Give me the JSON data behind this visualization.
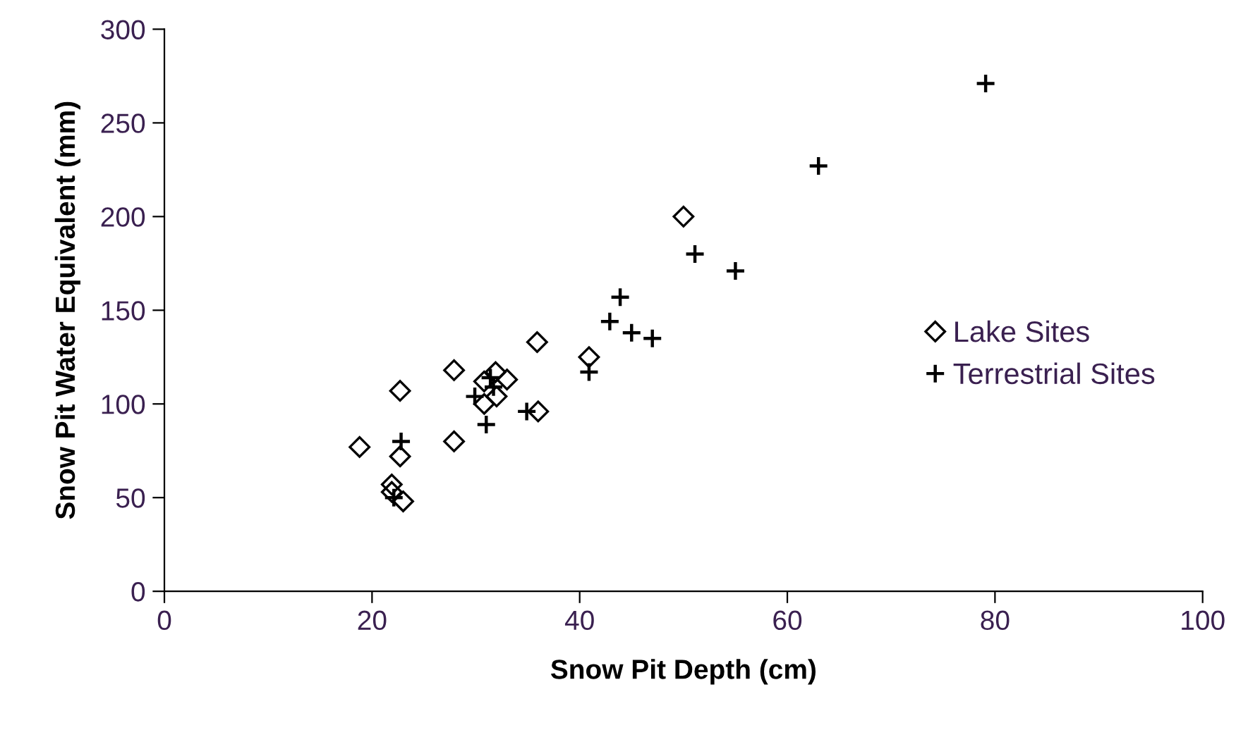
{
  "chart_data": {
    "type": "scatter",
    "xlabel": "Snow Pit Depth (cm)",
    "ylabel": "Snow Pit Water Equivalent (mm)",
    "xlim": [
      0,
      100
    ],
    "xticks": [
      0,
      20,
      40,
      60,
      80,
      100
    ],
    "ylim": [
      0,
      300
    ],
    "yticks": [
      0,
      50,
      100,
      150,
      200,
      250,
      300
    ],
    "grid": false,
    "legend": "right",
    "series": [
      {
        "name": "Lake Sites",
        "color": "#000000",
        "marker": "diamond",
        "x": [
          18.8,
          21.9,
          21.9,
          23,
          22.7,
          22.7,
          27.9,
          27.9,
          30.8,
          30.8,
          31.9,
          32,
          33,
          36,
          35.9,
          40.9,
          50
        ],
        "values": [
          77,
          57,
          53,
          48,
          72,
          107,
          80,
          118,
          100,
          112,
          117,
          104,
          113,
          96,
          133,
          125,
          200
        ]
      },
      {
        "name": "Terrestrial Sites",
        "color": "#000000",
        "marker": "cross",
        "x": [
          22.1,
          22.8,
          29.9,
          31,
          31.4,
          31.7,
          34.9,
          40.9,
          42.9,
          43.9,
          45,
          47,
          51.1,
          55,
          63,
          79.1
        ],
        "values": [
          50,
          80,
          104,
          89,
          114,
          109,
          96,
          117,
          144,
          157,
          138,
          135,
          180,
          171,
          227,
          271
        ]
      }
    ]
  }
}
